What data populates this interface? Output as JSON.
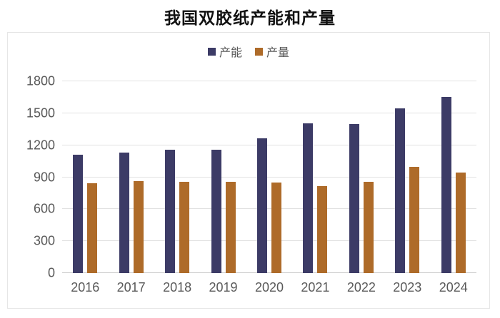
{
  "title": "我国双胶纸产能和产量",
  "chart_data": {
    "type": "bar",
    "title": "我国双胶纸产能和产量",
    "categories": [
      "2016",
      "2017",
      "2018",
      "2019",
      "2020",
      "2021",
      "2022",
      "2023",
      "2024"
    ],
    "series": [
      {
        "name": "产能",
        "color": "#3c3b66",
        "values": [
          1110,
          1130,
          1155,
          1160,
          1265,
          1405,
          1400,
          1545,
          1650
        ]
      },
      {
        "name": "产量",
        "color": "#ae6b29",
        "values": [
          845,
          865,
          860,
          855,
          850,
          820,
          860,
          1000,
          945
        ]
      }
    ],
    "xlabel": "",
    "ylabel": "",
    "ylim": [
      0,
      1800
    ],
    "yticks": [
      0,
      300,
      600,
      900,
      1200,
      1500,
      1800
    ],
    "grid": true,
    "legend_position": "top-center"
  },
  "colors": {
    "capacity_bar": "#3c3b66",
    "production_bar": "#ae6b29",
    "axis_text": "#595959",
    "gridline": "#e2e2e2",
    "title_text": "#111111",
    "panel_border": "#e6e6e6"
  }
}
